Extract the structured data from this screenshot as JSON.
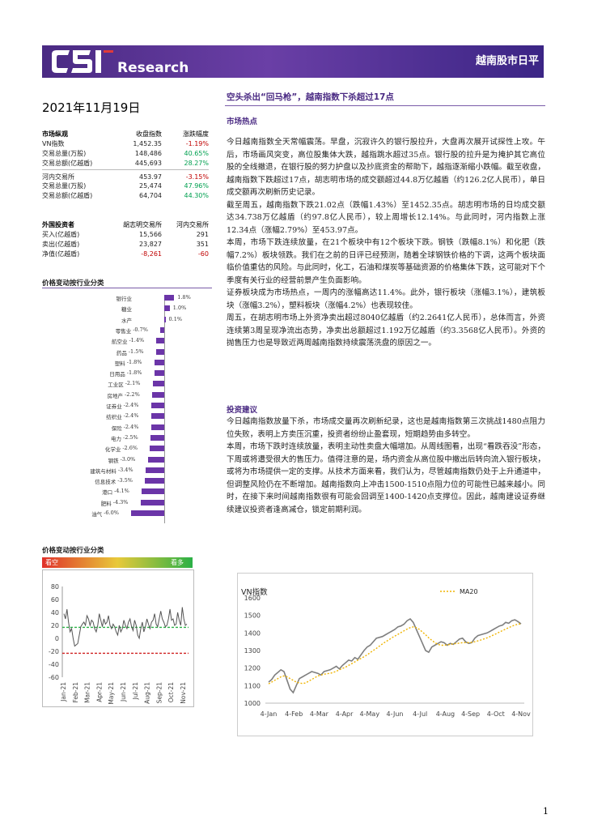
{
  "header": {
    "logo_text": "CSI",
    "logo_sub": "Research",
    "report_title": "越南股市日平"
  },
  "date": "2021年11月19日",
  "market_summary": {
    "title": "市场纵观",
    "col1": "收盘指数",
    "col2": "涨跌幅度",
    "rows": [
      {
        "label": "VN指数",
        "v1": "1,452.35",
        "v2": "-1.19%",
        "tone": "neg"
      },
      {
        "label": "交易总量(万股)",
        "v1": "148,486",
        "v2": "40.65%",
        "tone": "pos"
      },
      {
        "label": "交易总额(亿越盾)",
        "v1": "445,693",
        "v2": "28.27%",
        "tone": "pos"
      }
    ],
    "rows2": [
      {
        "label": "河内交易所",
        "v1": "453.97",
        "v2": "-3.15%",
        "tone": "neg"
      },
      {
        "label": "交易总量(万股)",
        "v1": "25,474",
        "v2": "47.96%",
        "tone": "pos"
      },
      {
        "label": "交易总额(亿越盾)",
        "v1": "64,704",
        "v2": "44.30%",
        "tone": "pos"
      }
    ]
  },
  "foreign": {
    "title": "外国投资者",
    "col1": "胡志明交易所",
    "col2": "河内交易所",
    "rows": [
      {
        "label": "买入(亿越盾)",
        "v1": "15,566",
        "v2": "291",
        "tone": ""
      },
      {
        "label": "卖出(亿越盾)",
        "v1": "23,827",
        "v2": "351",
        "tone": ""
      },
      {
        "label": "净值(亿越盾)",
        "v1": "-8,261",
        "v2": "-60",
        "tone": "neg"
      }
    ]
  },
  "sector_title": "价格变动按行业分类",
  "sector_chart": {
    "type": "bar",
    "categories": [
      "银行业",
      "糖业",
      "水产",
      "零售业",
      "航空业",
      "药品",
      "塑料",
      "日用品",
      "工业区",
      "房地产",
      "证券业",
      "纺织业",
      "保险",
      "电力",
      "化学业",
      "钢铁",
      "建筑与材料",
      "信息技术",
      "港口",
      "肥料",
      "油气"
    ],
    "values": [
      1.8,
      1.0,
      0.1,
      -0.7,
      -1.4,
      -1.5,
      -1.8,
      -1.8,
      -2.1,
      -2.2,
      -2.4,
      -2.4,
      -2.4,
      -2.5,
      -2.6,
      -3.0,
      -3.4,
      -3.5,
      -4.1,
      -4.3,
      -6.0
    ],
    "value_labels": [
      "1.8%",
      "1.0%",
      "0.1%",
      "-0.7%",
      "-1.4%",
      "-1.5%",
      "-1.8%",
      "-1.8%",
      "-2.1%",
      "-2.2%",
      "-2.4%",
      "-2.4%",
      "-2.4%",
      "-2.5%",
      "-2.6%",
      "-3.0%",
      "-3.4%",
      "-3.5%",
      "-4.1%",
      "-4.3%",
      "-6.0%"
    ]
  },
  "sentiment": {
    "title": "价格变动按行业分类",
    "left": "看空",
    "right": "看多"
  },
  "sentiment_chart": {
    "type": "line",
    "yticks": [
      "80",
      "60",
      "40",
      "20",
      "0",
      "-20",
      "-40",
      "-60"
    ],
    "ylim": [
      -60,
      80
    ],
    "xticks": [
      "Jan-21",
      "Feb-21",
      "Mar-21",
      "Apr-21",
      "May-21",
      "Jun-21",
      "Jul-21",
      "Aug-21",
      "Sep-21",
      "Oct-21",
      "Nov-21"
    ],
    "upper_line": 17,
    "lower_line": -23,
    "values": [
      38,
      30,
      45,
      25,
      10,
      15,
      0,
      -12,
      -10,
      -8,
      5,
      18,
      22,
      25,
      20,
      35,
      30,
      20,
      28,
      25,
      15,
      10,
      20,
      38,
      28,
      18,
      30,
      22,
      25,
      35,
      20,
      15,
      22,
      18,
      10,
      5,
      20,
      10,
      15,
      28,
      20,
      15,
      25,
      30,
      18,
      12,
      28,
      20,
      5,
      0,
      15,
      25,
      10,
      18,
      30,
      22,
      15,
      25,
      28,
      38,
      22,
      18,
      30,
      42,
      30,
      25,
      18,
      20,
      30,
      45,
      28,
      30,
      20,
      22,
      40,
      28,
      20,
      48,
      30,
      20,
      22
    ]
  },
  "title": "空头杀出“回马枪”，越南指数下杀超过17点",
  "hot_title": "市场热点",
  "hot_paras": [
    "今日越南指数全天常幅震荡。早盘，沉寂许久的银行股拉升，大盘再次展开试探性上攻。午后，市场画风突变，高位股集体大跌，越指跳水超过35点。银行股的拉升是为掩护其它高位股的全线撤退，在银行股的努力护盘以及抄底资金的帮助下，越指逐渐缩小跌幅。截至收盘，越南指数下跌超过17点，胡志明市场的成交额超过44.8万亿越盾（约126.2亿人民币），单日成交额再次刷新历史记录。",
    "截至周五，越南指数下跌21.02点（跌幅1.43%）至1452.35点。胡志明市场的日均成交额达34.738万亿越盾（约97.8亿人民币），较上周增长12.14%。与此同时，河内指数上涨12.34点（涨幅2.79%）至453.97点。",
    "本周，市场下跌连续放量，在21个板块中有12个板块下跌。钢铁（跌幅8.1%）和化肥（跌幅7.2%）板块领跌。我们在之前的日评已经预测，随着全球钢铁价格的下调，这两个板块面临价值重估的风险。与此同时，化工，石油和煤炭等基础资源的价格集体下跌，这可能对下个季度有关行业的经营前景产生负面影响。",
    "证券板块成为市场热点，一周内的涨幅高达11.4%。此外，银行板块（涨幅3.1%），建筑板块（涨幅3.2%），塑料板块（涨幅4.2%）也表现较佳。",
    "周五，在胡志明市场上外资净卖出超过8040亿越盾（约2.2641亿人民币），总体而言，外资连续第3周呈现净流出态势，净卖出总额超过1.192万亿越盾（约3.3568亿人民币）。外资的抛售压力也是导致近两周越南指数持续震荡洗盘的原因之一。"
  ],
  "advice_title": "投资建议",
  "advice_paras": [
    "今日越南指数放量下杀，市场成交量再次刷新纪录，这也是越南指数第三次挑战1480点阻力位失败，表明上方卖压沉重，投资者纷纷止盈套现，短期趋势由多转空。",
    "本周，市场下跌时连续放量，表明主动性卖盘大幅增加。从周线图看，出现“看跌吞没”形态，下周或将遭受很大的售压力。值得注意的是，场内资金从高位股中撤出后转向流入银行板块，或将为市场提供一定的支撑。从技术方面来看，我们认为，尽管越南指数仍处于上升通道中，但调整风险仍在不断增加。越南指数向上冲击1500-1510点阻力位的可能性已越来越小。同时，在接下来时间越南指数很有可能会回调至1400-1420点支撑位。因此，越南建设证券继续建议投资者逢高减仓，锁定前期利润。"
  ],
  "vn_chart": {
    "type": "line",
    "title": "VN指数",
    "legend": "MA20",
    "yticks": [
      "1600",
      "1500",
      "1400",
      "1300",
      "1200",
      "1100",
      "1000"
    ],
    "ylim": [
      1000,
      1600
    ],
    "xticks": [
      "4-Jan",
      "4-Feb",
      "4-Mar",
      "4-Apr",
      "4-May",
      "4-Jun",
      "4-Jul",
      "4-Aug",
      "4-Sep",
      "4-Oct",
      "4-Nov"
    ],
    "series_color": "#7f7f7f",
    "ma_color": "#f0b400",
    "values": [
      1120,
      1135,
      1160,
      1175,
      1190,
      1180,
      1130,
      1080,
      1060,
      1100,
      1140,
      1150,
      1160,
      1170,
      1180,
      1175,
      1170,
      1160,
      1180,
      1185,
      1190,
      1200,
      1210,
      1195,
      1215,
      1230,
      1245,
      1240,
      1260,
      1250,
      1275,
      1300,
      1320,
      1330,
      1350,
      1370,
      1375,
      1380,
      1390,
      1400,
      1410,
      1420,
      1435,
      1440,
      1450,
      1470,
      1480,
      1460,
      1420,
      1380,
      1340,
      1300,
      1290,
      1320,
      1330,
      1340,
      1350,
      1345,
      1330,
      1340,
      1335,
      1350,
      1365,
      1370,
      1350,
      1340,
      1345,
      1370,
      1385,
      1390,
      1395,
      1400,
      1410,
      1420,
      1430,
      1440,
      1445,
      1460,
      1455,
      1470,
      1475,
      1465,
      1452
    ],
    "ma": [
      1110,
      1120,
      1130,
      1140,
      1150,
      1155,
      1150,
      1140,
      1130,
      1120,
      1115,
      1112,
      1115,
      1125,
      1135,
      1145,
      1155,
      1160,
      1165,
      1168,
      1170,
      1175,
      1182,
      1190,
      1198,
      1205,
      1215,
      1225,
      1235,
      1245,
      1255,
      1265,
      1275,
      1288,
      1300,
      1312,
      1325,
      1338,
      1350,
      1360,
      1372,
      1382,
      1392,
      1402,
      1412,
      1422,
      1430,
      1435,
      1430,
      1420,
      1405,
      1390,
      1372,
      1358,
      1345,
      1335,
      1330,
      1330,
      1332,
      1335,
      1338,
      1340,
      1342,
      1345,
      1345,
      1345,
      1346,
      1350,
      1355,
      1360,
      1366,
      1372,
      1380,
      1388,
      1396,
      1405,
      1414,
      1422,
      1430,
      1438,
      1445,
      1450,
      1452
    ]
  },
  "page_number": "1"
}
